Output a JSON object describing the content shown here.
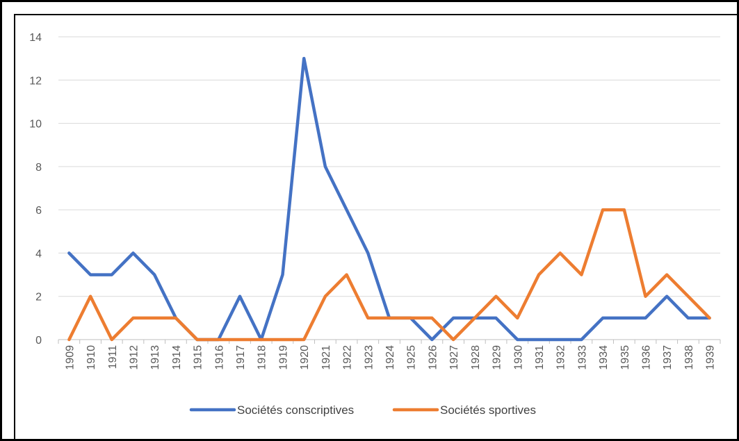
{
  "chart_data": {
    "type": "line",
    "title": "",
    "xlabel": "",
    "ylabel": "",
    "ylim": [
      0,
      14
    ],
    "yticks": [
      0,
      2,
      4,
      6,
      8,
      10,
      12,
      14
    ],
    "grid": true,
    "legend_position": "bottom",
    "x": [
      "1909",
      "1910",
      "1911",
      "1912",
      "1913",
      "1914",
      "1915",
      "1916",
      "1917",
      "1918",
      "1919",
      "1920",
      "1921",
      "1922",
      "1923",
      "1924",
      "1925",
      "1926",
      "1927",
      "1928",
      "1929",
      "1930",
      "1931",
      "1932",
      "1933",
      "1934",
      "1935",
      "1936",
      "1937",
      "1938",
      "1939"
    ],
    "series": [
      {
        "name": "Sociétés conscriptives",
        "color": "#4472c4",
        "values": [
          4,
          3,
          3,
          4,
          3,
          1,
          0,
          0,
          2,
          0,
          3,
          13,
          8,
          6,
          4,
          1,
          1,
          0,
          1,
          1,
          1,
          0,
          0,
          0,
          0,
          1,
          1,
          1,
          2,
          1,
          1
        ]
      },
      {
        "name": "Sociétés sportives",
        "color": "#ed7d31",
        "values": [
          0,
          2,
          0,
          1,
          1,
          1,
          0,
          0,
          0,
          0,
          0,
          0,
          2,
          3,
          1,
          1,
          1,
          1,
          0,
          1,
          2,
          1,
          3,
          4,
          3,
          6,
          6,
          2,
          3,
          2,
          1
        ]
      }
    ]
  }
}
